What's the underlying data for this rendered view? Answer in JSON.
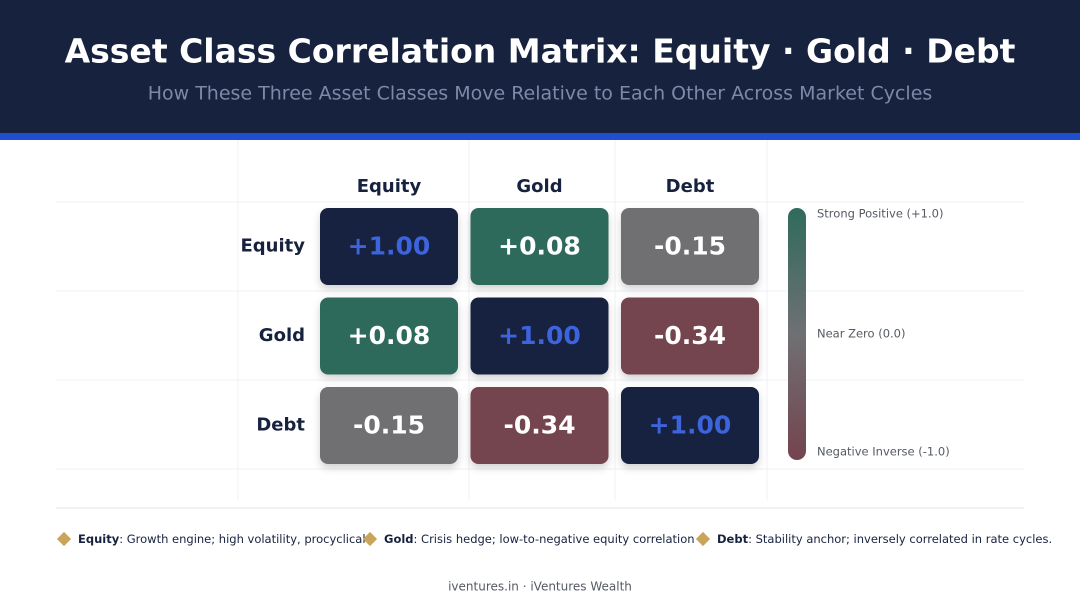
{
  "chart_data": {
    "type": "heatmap",
    "title": "Asset Class Correlation Matrix: Equity · Gold · Debt",
    "subtitle": "How These Three Asset Classes Move Relative to Each Other Across Market Cycles",
    "columns": [
      "Equity",
      "Gold",
      "Debt"
    ],
    "rows": [
      "Equity",
      "Gold",
      "Debt"
    ],
    "values": [
      [
        1,
        0.08,
        -0.15
      ],
      [
        0.08,
        1,
        -0.34
      ],
      [
        -0.15,
        -0.34,
        1
      ]
    ],
    "value_labels": [
      [
        "+1.00",
        "+0.08",
        "-0.15"
      ],
      [
        "+0.08",
        "+1.00",
        "-0.34"
      ],
      [
        "-0.15",
        "-0.34",
        "+1.00"
      ]
    ],
    "cell_colors": [
      [
        "#17223f",
        "#2f6b5c",
        "#6f7073"
      ],
      [
        "#2f6b5c",
        "#17223f",
        "#74444f"
      ],
      [
        "#6f7073",
        "#74444f",
        "#17223f"
      ]
    ],
    "colorscale": [
      "#2f6b5c",
      "#6f7073",
      "#74444f"
    ],
    "clim": [
      -1,
      1
    ],
    "cticks": [
      {
        "value": 1,
        "label": "Strong Positive (+1.0)"
      },
      {
        "value": 0,
        "label": "Near Zero (0.0)"
      },
      {
        "value": -1,
        "label": "Negative Inverse (-1.0)"
      }
    ],
    "notes": [
      {
        "name": "Equity",
        "text": ": Growth engine; high volatility, procyclical"
      },
      {
        "name": "Gold",
        "text": ": Crisis hedge; low-to-negative equity correlation"
      },
      {
        "name": "Debt",
        "text": ": Stability anchor; inversely correlated in rate cycles."
      }
    ],
    "footer": "iventures.in · iVentures Wealth"
  }
}
